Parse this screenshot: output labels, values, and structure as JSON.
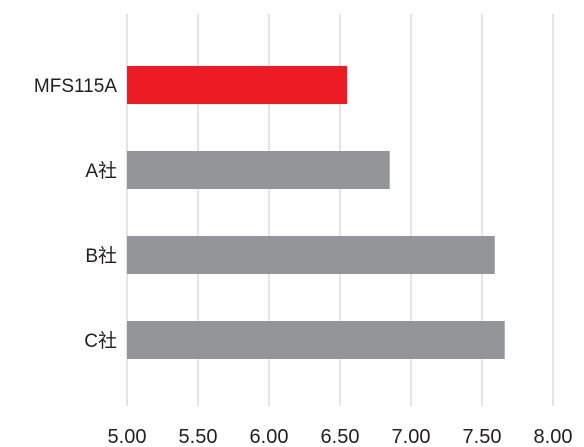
{
  "chart_data": {
    "type": "bar",
    "orientation": "horizontal",
    "categories": [
      "MFS115A",
      "A社",
      "B社",
      "C社"
    ],
    "values": [
      6.55,
      6.85,
      7.59,
      7.66
    ],
    "colors": [
      "#ed1c24",
      "#939598",
      "#939598",
      "#939598"
    ],
    "xlim": [
      5.0,
      8.0
    ],
    "xticks": [
      "5.00",
      "5.50",
      "6.00",
      "6.50",
      "7.00",
      "7.50",
      "8.00"
    ],
    "grid": "vertical",
    "title": "",
    "xlabel": "",
    "ylabel": ""
  }
}
